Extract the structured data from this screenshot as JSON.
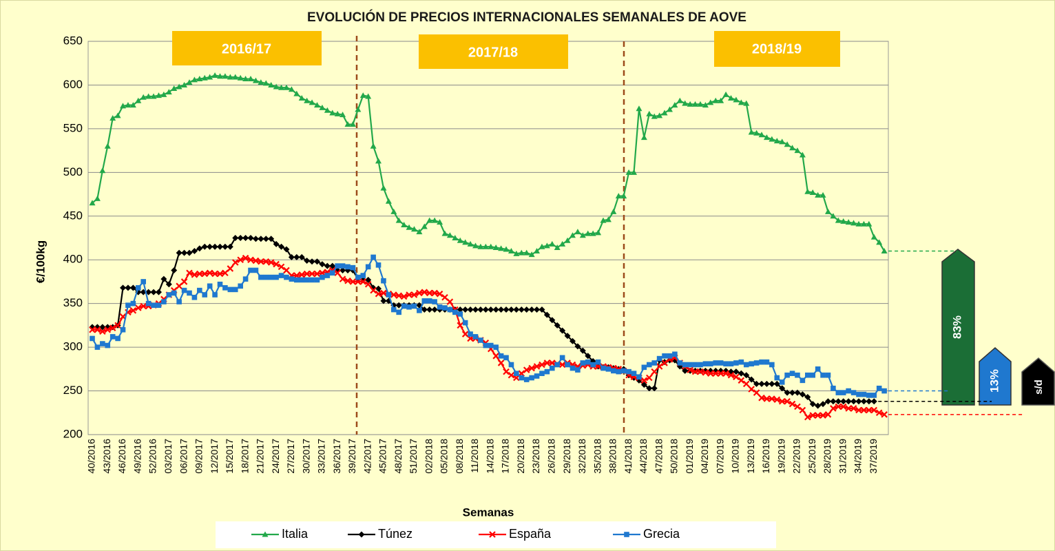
{
  "chart_data": {
    "type": "line",
    "title": "EVOLUCIÓN DE PRECIOS INTERNACIONALES SEMANALES DE AOVE",
    "x_label": "Semanas",
    "y_label": "€/100kg",
    "seasons": [
      "2016/17",
      "2017/18",
      "2018/19"
    ],
    "annotations": [
      "83%",
      "13%",
      "s/d"
    ],
    "ylim": [
      200,
      650
    ],
    "yticks": [
      200,
      250,
      300,
      350,
      400,
      450,
      500,
      550,
      600,
      650
    ],
    "grid": true,
    "legend": "bottom",
    "categories": [
      "40/2016",
      null,
      null,
      "43/2016",
      null,
      null,
      "46/2016",
      null,
      null,
      "49/2016",
      null,
      null,
      "52/2016",
      null,
      null,
      "03/2017",
      null,
      null,
      "06/2017",
      null,
      null,
      "09/2017",
      null,
      null,
      "12/2017",
      null,
      null,
      "15/2017",
      null,
      null,
      "18/2017",
      null,
      null,
      "21/2017",
      null,
      null,
      "24/2017",
      null,
      null,
      "27/2017",
      null,
      null,
      "30/2017",
      null,
      null,
      "33/2017",
      null,
      null,
      "36/2017",
      null,
      null,
      "39/2017",
      null,
      null,
      "42/2017",
      null,
      null,
      "45/2017",
      null,
      null,
      "48/2017",
      null,
      null,
      "51/2017",
      null,
      null,
      "02/2018",
      null,
      null,
      "05/2018",
      null,
      null,
      "08/2018",
      null,
      null,
      "11/2018",
      null,
      null,
      "14/2018",
      null,
      null,
      "17/2018",
      null,
      null,
      "20/2018",
      null,
      null,
      "23/2018",
      null,
      null,
      "26/2018",
      null,
      null,
      "29/2018",
      null,
      null,
      "32/2018",
      null,
      null,
      "35/2018",
      null,
      null,
      "38/2018",
      null,
      null,
      "41/2018",
      null,
      null,
      "44/2018",
      null,
      null,
      "47/2018",
      null,
      null,
      "50/2018",
      null,
      null,
      "01/2019",
      null,
      null,
      "04/2019",
      null,
      null,
      "07/2019",
      null,
      null,
      "10/2019",
      null,
      null,
      "13/2019",
      null,
      null,
      "16/2019",
      null,
      null,
      "19/2019",
      null,
      null,
      "22/2019",
      null,
      null,
      "25/2019",
      null,
      null,
      "28/2019",
      null,
      null,
      "31/2019",
      null,
      null,
      "34/2019",
      null,
      null,
      "37/2019",
      null,
      null
    ],
    "series": [
      {
        "name": "Italia",
        "color": "#22a84a",
        "marker": "triangle",
        "values": [
          465,
          470,
          502,
          530,
          562,
          565,
          576,
          577,
          577,
          582,
          586,
          587,
          587,
          588,
          589,
          592,
          596,
          598,
          600,
          603,
          606,
          607,
          608,
          609,
          611,
          610,
          610,
          609,
          609,
          608,
          607,
          607,
          605,
          603,
          602,
          600,
          598,
          597,
          597,
          595,
          590,
          585,
          582,
          580,
          577,
          574,
          571,
          568,
          567,
          566,
          555,
          555,
          572,
          588,
          587,
          530,
          513,
          482,
          467,
          455,
          445,
          440,
          437,
          435,
          432,
          438,
          445,
          445,
          443,
          430,
          428,
          425,
          422,
          420,
          418,
          416,
          415,
          415,
          415,
          414,
          413,
          412,
          410,
          407,
          408,
          408,
          406,
          410,
          415,
          416,
          418,
          414,
          418,
          422,
          428,
          432,
          428,
          430,
          430,
          431,
          445,
          446,
          455,
          473,
          473,
          500,
          500,
          573,
          540,
          567,
          564,
          565,
          568,
          572,
          577,
          582,
          579,
          578,
          578,
          578,
          577,
          580,
          582,
          582,
          589,
          585,
          583,
          580,
          579,
          546,
          545,
          543,
          540,
          538,
          536,
          535,
          532,
          528,
          525,
          520,
          478,
          477,
          474,
          474,
          455,
          450,
          445,
          444,
          443,
          442,
          441,
          441,
          441,
          426,
          420,
          410
        ]
      },
      {
        "name": "Túnez",
        "color": "#000000",
        "marker": "diamond",
        "values": [
          323,
          323,
          323,
          323,
          323,
          325,
          368,
          368,
          368,
          363,
          363,
          363,
          363,
          363,
          378,
          372,
          388,
          408,
          408,
          408,
          410,
          413,
          415,
          415,
          415,
          415,
          415,
          415,
          425,
          425,
          425,
          425,
          424,
          424,
          424,
          424,
          418,
          415,
          412,
          403,
          403,
          403,
          399,
          398,
          398,
          395,
          393,
          393,
          388,
          388,
          388,
          388,
          378,
          377,
          377,
          368,
          367,
          353,
          353,
          348,
          348,
          348,
          348,
          348,
          348,
          343,
          343,
          343,
          343,
          343,
          343,
          343,
          343,
          343,
          343,
          343,
          343,
          343,
          343,
          343,
          343,
          343,
          343,
          343,
          343,
          343,
          343,
          343,
          343,
          337,
          331,
          325,
          319,
          313,
          307,
          301,
          296,
          290,
          284,
          278,
          277,
          277,
          276,
          275,
          275,
          268,
          265,
          262,
          257,
          253,
          253,
          285,
          283,
          285,
          285,
          278,
          273,
          273,
          273,
          273,
          273,
          273,
          273,
          273,
          273,
          272,
          272,
          270,
          268,
          263,
          258,
          258,
          258,
          258,
          258,
          253,
          248,
          248,
          248,
          246,
          243,
          235,
          233,
          235,
          238,
          238,
          238,
          238,
          238,
          238,
          238,
          238,
          238,
          238,
          null,
          null
        ]
      },
      {
        "name": "España",
        "color": "#ff0000",
        "marker": "cross",
        "values": [
          320,
          320,
          318,
          320,
          322,
          325,
          335,
          340,
          342,
          345,
          347,
          347,
          348,
          350,
          355,
          360,
          365,
          370,
          375,
          385,
          383,
          384,
          384,
          385,
          384,
          384,
          385,
          390,
          397,
          400,
          402,
          400,
          399,
          398,
          398,
          397,
          395,
          392,
          388,
          382,
          382,
          383,
          384,
          384,
          384,
          385,
          386,
          388,
          385,
          378,
          376,
          375,
          375,
          375,
          372,
          365,
          361,
          362,
          361,
          360,
          359,
          358,
          360,
          360,
          362,
          363,
          362,
          362,
          361,
          357,
          352,
          343,
          325,
          315,
          310,
          310,
          308,
          305,
          298,
          290,
          282,
          272,
          268,
          265,
          270,
          274,
          276,
          278,
          280,
          282,
          282,
          281,
          280,
          282,
          280,
          278,
          279,
          280,
          278,
          278,
          278,
          277,
          276,
          275,
          273,
          268,
          266,
          265,
          262,
          265,
          272,
          278,
          282,
          286,
          288,
          282,
          278,
          274,
          272,
          272,
          271,
          270,
          270,
          270,
          270,
          268,
          266,
          262,
          258,
          252,
          248,
          242,
          241,
          241,
          240,
          238,
          238,
          235,
          232,
          228,
          220,
          222,
          222,
          222,
          223,
          230,
          232,
          232,
          230,
          230,
          228,
          228,
          228,
          228,
          225,
          223
        ]
      },
      {
        "name": "Grecia",
        "color": "#1f78cf",
        "marker": "square",
        "values": [
          310,
          300,
          304,
          302,
          312,
          310,
          320,
          348,
          350,
          368,
          375,
          350,
          348,
          348,
          352,
          360,
          362,
          352,
          365,
          362,
          357,
          365,
          360,
          370,
          360,
          372,
          368,
          366,
          366,
          370,
          378,
          388,
          388,
          380,
          380,
          380,
          380,
          382,
          380,
          378,
          377,
          377,
          377,
          377,
          377,
          380,
          382,
          385,
          393,
          393,
          392,
          391,
          380,
          382,
          392,
          403,
          394,
          376,
          360,
          343,
          340,
          347,
          346,
          347,
          342,
          353,
          353,
          352,
          346,
          345,
          343,
          340,
          338,
          328,
          315,
          312,
          308,
          302,
          302,
          300,
          290,
          288,
          280,
          270,
          265,
          263,
          265,
          267,
          270,
          272,
          276,
          280,
          288,
          280,
          276,
          274,
          282,
          283,
          280,
          283,
          276,
          275,
          273,
          272,
          273,
          272,
          270,
          266,
          277,
          280,
          282,
          287,
          290,
          290,
          292,
          282,
          280,
          280,
          280,
          280,
          281,
          281,
          282,
          282,
          281,
          281,
          282,
          283,
          280,
          281,
          282,
          283,
          283,
          280,
          265,
          260,
          268,
          270,
          268,
          262,
          268,
          268,
          275,
          268,
          268,
          253,
          248,
          248,
          250,
          248,
          246,
          246,
          245,
          245,
          253,
          250
        ]
      }
    ]
  }
}
